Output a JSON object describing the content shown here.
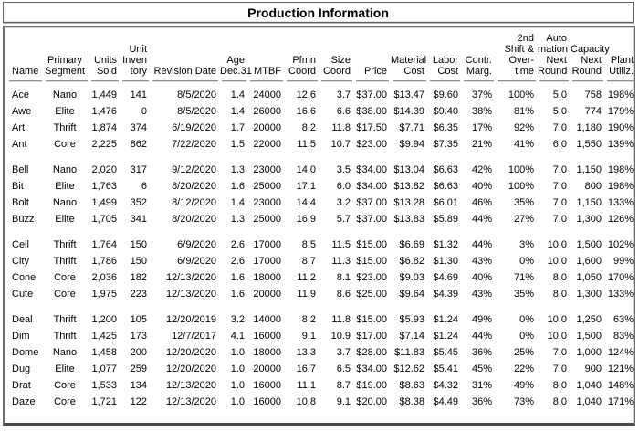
{
  "title": "Production Information",
  "table": {
    "columns": [
      {
        "id": "name",
        "lines": [
          "Name"
        ],
        "align": "left"
      },
      {
        "id": "primary-segment",
        "lines": [
          "Primary",
          "Segment"
        ],
        "align": "center"
      },
      {
        "id": "units-sold",
        "lines": [
          "Units",
          "Sold"
        ],
        "align": "right"
      },
      {
        "id": "unit-inventory",
        "lines": [
          "Unit",
          "Inven",
          "tory"
        ],
        "align": "right"
      },
      {
        "id": "revision-date",
        "lines": [
          "Revision Date"
        ],
        "align": "right"
      },
      {
        "id": "age-dec31",
        "lines": [
          "Age",
          "Dec.31"
        ],
        "align": "right"
      },
      {
        "id": "mtbf",
        "lines": [
          "MTBF"
        ],
        "align": "right"
      },
      {
        "id": "pfmn-coord",
        "lines": [
          "Pfmn",
          "Coord"
        ],
        "align": "right"
      },
      {
        "id": "size-coord",
        "lines": [
          "Size",
          "Coord"
        ],
        "align": "right"
      },
      {
        "id": "price",
        "lines": [
          "Price"
        ],
        "align": "right"
      },
      {
        "id": "material-cost",
        "lines": [
          "Material",
          "Cost"
        ],
        "align": "right"
      },
      {
        "id": "labor-cost",
        "lines": [
          "Labor",
          "Cost"
        ],
        "align": "right"
      },
      {
        "id": "contr-marg",
        "lines": [
          "Contr.",
          "Marg."
        ],
        "align": "right"
      },
      {
        "id": "second-shift-overtime",
        "lines": [
          "2nd",
          "Shift &",
          "Over-",
          "time"
        ],
        "align": "right"
      },
      {
        "id": "automation-next-round",
        "lines": [
          "Auto",
          "mation",
          "Next",
          "Round"
        ],
        "align": "right"
      },
      {
        "id": "capacity-next-round",
        "lines": [
          "Capacity",
          "Next",
          "Round"
        ],
        "align": "right"
      },
      {
        "id": "plant-utiliz",
        "lines": [
          "Plant",
          "Utiliz."
        ],
        "align": "right"
      }
    ],
    "groups": [
      {
        "rows": [
          {
            "cells": [
              "Ace",
              "Nano",
              "1,449",
              "141",
              "8/5/2020",
              "1.4",
              "24000",
              "12.6",
              "3.7",
              "$37.00",
              "$13.47",
              "$9.60",
              "37%",
              "100%",
              "5.0",
              "758",
              "198%"
            ]
          },
          {
            "cells": [
              "Awe",
              "Elite",
              "1,476",
              "0",
              "8/5/2020",
              "1.4",
              "26000",
              "16.6",
              "6.6",
              "$38.00",
              "$14.39",
              "$9.40",
              "38%",
              "81%",
              "5.0",
              "774",
              "179%"
            ]
          },
          {
            "cells": [
              "Art",
              "Thrift",
              "1,874",
              "374",
              "6/19/2020",
              "1.7",
              "20000",
              "8.2",
              "11.8",
              "$17.50",
              "$7.71",
              "$6.35",
              "17%",
              "92%",
              "7.0",
              "1,180",
              "190%"
            ]
          },
          {
            "cells": [
              "Ant",
              "Core",
              "2,225",
              "862",
              "7/22/2020",
              "1.5",
              "22000",
              "11.5",
              "10.7",
              "$23.00",
              "$9.94",
              "$7.35",
              "21%",
              "41%",
              "6.0",
              "1,550",
              "139%"
            ]
          }
        ]
      },
      {
        "rows": [
          {
            "cells": [
              "Bell",
              "Nano",
              "2,020",
              "317",
              "9/12/2020",
              "1.3",
              "23000",
              "14.0",
              "3.5",
              "$34.00",
              "$13.04",
              "$6.63",
              "42%",
              "100%",
              "7.0",
              "1,150",
              "198%"
            ]
          },
          {
            "cells": [
              "Bit",
              "Elite",
              "1,763",
              "6",
              "8/20/2020",
              "1.6",
              "25000",
              "17.1",
              "6.0",
              "$34.00",
              "$13.82",
              "$6.63",
              "40%",
              "100%",
              "7.0",
              "800",
              "198%"
            ]
          },
          {
            "cells": [
              "Bolt",
              "Nano",
              "1,499",
              "352",
              "8/12/2020",
              "1.4",
              "23000",
              "14.4",
              "3.2",
              "$37.00",
              "$13.28",
              "$6.01",
              "46%",
              "35%",
              "7.0",
              "1,150",
              "133%"
            ]
          },
          {
            "cells": [
              "Buzz",
              "Elite",
              "1,705",
              "341",
              "8/20/2020",
              "1.3",
              "25000",
              "16.9",
              "5.7",
              "$37.00",
              "$13.83",
              "$5.89",
              "44%",
              "27%",
              "7.0",
              "1,300",
              "126%"
            ]
          }
        ]
      },
      {
        "rows": [
          {
            "cells": [
              "Cell",
              "Thrift",
              "1,764",
              "150",
              "6/9/2020",
              "2.6",
              "17000",
              "8.5",
              "11.5",
              "$15.00",
              "$6.69",
              "$1.32",
              "44%",
              "3%",
              "10.0",
              "1,500",
              "102%"
            ]
          },
          {
            "cells": [
              "City",
              "Thrift",
              "1,786",
              "150",
              "6/9/2020",
              "2.6",
              "17000",
              "8.7",
              "11.3",
              "$15.00",
              "$6.82",
              "$1.30",
              "43%",
              "0%",
              "10.0",
              "1,600",
              "99%"
            ]
          },
          {
            "cells": [
              "Cone",
              "Core",
              "2,036",
              "182",
              "12/13/2020",
              "1.6",
              "18000",
              "11.2",
              "8.1",
              "$23.00",
              "$9.03",
              "$4.69",
              "40%",
              "71%",
              "8.0",
              "1,050",
              "170%"
            ]
          },
          {
            "cells": [
              "Cute",
              "Core",
              "1,975",
              "223",
              "12/13/2020",
              "1.6",
              "20000",
              "11.9",
              "8.6",
              "$25.00",
              "$9.64",
              "$4.39",
              "43%",
              "35%",
              "8.0",
              "1,300",
              "133%"
            ]
          }
        ]
      },
      {
        "rows": [
          {
            "cells": [
              "Deal",
              "Thrift",
              "1,200",
              "105",
              "12/20/2019",
              "3.2",
              "14000",
              "8.2",
              "11.8",
              "$15.00",
              "$5.93",
              "$1.24",
              "49%",
              "0%",
              "10.0",
              "1,250",
              "63%"
            ]
          },
          {
            "cells": [
              "Dim",
              "Thrift",
              "1,425",
              "173",
              "12/7/2017",
              "4.1",
              "16000",
              "9.1",
              "10.9",
              "$17.00",
              "$7.14",
              "$1.24",
              "44%",
              "0%",
              "10.0",
              "1,500",
              "83%"
            ]
          },
          {
            "cells": [
              "Dome",
              "Nano",
              "1,458",
              "200",
              "12/20/2020",
              "1.0",
              "18000",
              "13.3",
              "3.7",
              "$28.00",
              "$11.83",
              "$5.45",
              "36%",
              "25%",
              "7.0",
              "1,000",
              "124%"
            ]
          },
          {
            "cells": [
              "Dug",
              "Elite",
              "1,077",
              "259",
              "12/20/2020",
              "1.0",
              "20000",
              "16.7",
              "6.5",
              "$34.00",
              "$12.62",
              "$5.41",
              "45%",
              "22%",
              "7.0",
              "900",
              "121%"
            ]
          },
          {
            "cells": [
              "Drat",
              "Core",
              "1,533",
              "134",
              "12/13/2020",
              "1.0",
              "16000",
              "11.1",
              "8.7",
              "$19.00",
              "$8.63",
              "$4.32",
              "31%",
              "49%",
              "8.0",
              "1,040",
              "148%"
            ]
          },
          {
            "cells": [
              "Daze",
              "Core",
              "1,721",
              "122",
              "12/13/2020",
              "1.0",
              "16000",
              "10.8",
              "9.1",
              "$20.00",
              "$8.38",
              "$4.49",
              "36%",
              "73%",
              "8.0",
              "1,040",
              "171%"
            ]
          }
        ]
      }
    ]
  }
}
